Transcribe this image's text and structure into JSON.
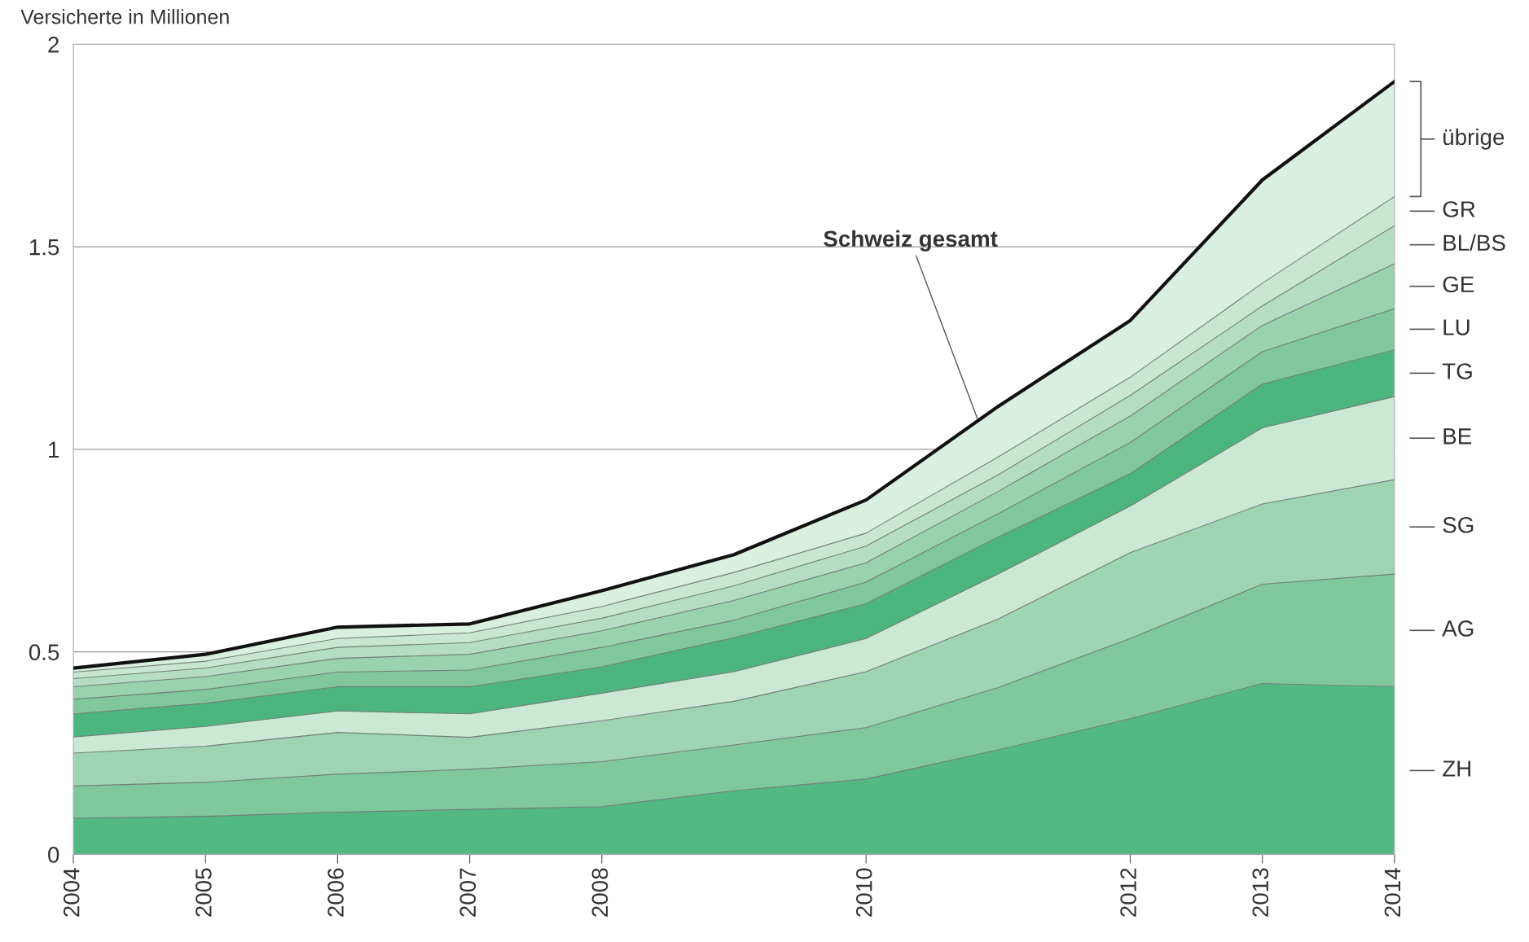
{
  "chart_data": {
    "type": "area",
    "stacked": true,
    "ylabel": "Versicherte in Millionen",
    "x": [
      2004,
      2005,
      2006,
      2007,
      2008,
      2009,
      2010,
      2011,
      2012,
      2013,
      2014
    ],
    "xlim": [
      2004,
      2014
    ],
    "xticks": [
      2004,
      2005,
      2006,
      2007,
      2008,
      2010,
      2012,
      2013,
      2014
    ],
    "ylim": [
      0,
      2
    ],
    "yticks": [
      0,
      0.5,
      1,
      1.5,
      2
    ],
    "grid": "y",
    "legend": false,
    "series": [
      {
        "name": "ZH",
        "color": "#52b983",
        "values": [
          0.089,
          0.094,
          0.104,
          0.111,
          0.118,
          0.157,
          0.186,
          0.258,
          0.335,
          0.422,
          0.414
        ]
      },
      {
        "name": "AG",
        "color": "#7fc89c",
        "values": [
          0.08,
          0.084,
          0.094,
          0.099,
          0.111,
          0.113,
          0.127,
          0.154,
          0.198,
          0.245,
          0.278
        ]
      },
      {
        "name": "SG",
        "color": "#9ed4b1",
        "values": [
          0.081,
          0.089,
          0.103,
          0.079,
          0.101,
          0.108,
          0.138,
          0.169,
          0.212,
          0.198,
          0.233
        ]
      },
      {
        "name": "BE",
        "color": "#cbe8d5",
        "values": [
          0.04,
          0.049,
          0.053,
          0.058,
          0.068,
          0.073,
          0.082,
          0.111,
          0.115,
          0.188,
          0.205
        ]
      },
      {
        "name": "TG",
        "color": "#4cb57d",
        "values": [
          0.057,
          0.057,
          0.06,
          0.067,
          0.065,
          0.084,
          0.086,
          0.091,
          0.08,
          0.108,
          0.116
        ]
      },
      {
        "name": "LU",
        "color": "#80c89c",
        "values": [
          0.036,
          0.034,
          0.036,
          0.041,
          0.048,
          0.043,
          0.053,
          0.058,
          0.077,
          0.08,
          0.101
        ]
      },
      {
        "name": "GE",
        "color": "#99d2ad",
        "values": [
          0.031,
          0.032,
          0.034,
          0.039,
          0.041,
          0.049,
          0.048,
          0.055,
          0.065,
          0.065,
          0.111
        ]
      },
      {
        "name": "BL/BS",
        "color": "#b5ddc3",
        "values": [
          0.02,
          0.021,
          0.027,
          0.029,
          0.031,
          0.036,
          0.041,
          0.041,
          0.051,
          0.048,
          0.094
        ]
      },
      {
        "name": "GR",
        "color": "#c9e6d3",
        "values": [
          0.016,
          0.017,
          0.022,
          0.024,
          0.029,
          0.033,
          0.032,
          0.044,
          0.045,
          0.056,
          0.072
        ]
      },
      {
        "name": "übrige",
        "color": "#d9efe0",
        "values": [
          0.01,
          0.017,
          0.028,
          0.022,
          0.039,
          0.044,
          0.082,
          0.125,
          0.14,
          0.255,
          0.284
        ]
      }
    ],
    "annotations": [
      {
        "text": "Schweiz gesamt",
        "x": 2010.85,
        "y": 1.07
      }
    ]
  }
}
